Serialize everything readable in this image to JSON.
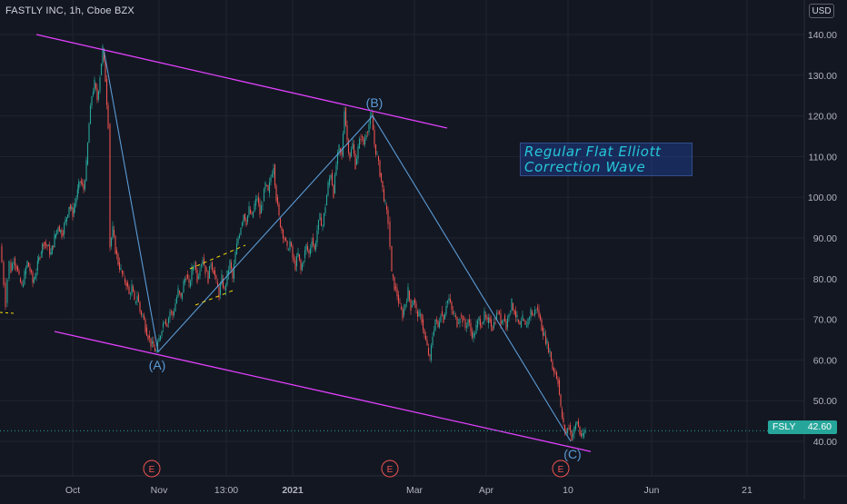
{
  "header": {
    "symbol_title": "FASTLY INC, 1h, Cboe BZX",
    "currency": "USD"
  },
  "colors": {
    "background": "#131722",
    "candle_up": "#26a69a",
    "candle_down": "#ef5350",
    "wave_line": "#5b9bd5",
    "channel_line": "#e040fb",
    "helper_dash": "#f5d90a",
    "annotation_text": "#26c6da",
    "grid": "#1f2430"
  },
  "annotation": {
    "line1": "Regular Flat Elliott",
    "line2": "Correction Wave"
  },
  "price_badge": {
    "symbol": "FSLY",
    "price": "42.60"
  },
  "chart_data": {
    "type": "candlestick",
    "title": "FASTLY INC, 1h, Cboe BZX",
    "y_unit": "USD",
    "ylim": [
      33,
      147
    ],
    "y_ticks": [
      40,
      50,
      60,
      70,
      80,
      90,
      100,
      110,
      120,
      130,
      140
    ],
    "y_tick_labels": [
      "40.00",
      "50.00",
      "60.00",
      "70.00",
      "80.00",
      "90.00",
      "100.00",
      "110.00",
      "120.00",
      "130.00",
      "140.00"
    ],
    "x_ticks": [
      "Oct",
      "Nov",
      "13:00",
      "2021",
      "Mar",
      "Apr",
      "10",
      "Jun",
      "21"
    ],
    "grid": true,
    "earnings_markers": [
      "E",
      "E",
      "E"
    ],
    "last_price": 42.6,
    "elliott_wave": [
      {
        "label": "",
        "price": 136.5
      },
      {
        "label": "(A)",
        "price": 62
      },
      {
        "label": "(B)",
        "price": 120
      },
      {
        "label": "(C)",
        "price": 40
      }
    ],
    "channel": {
      "upper": {
        "from_price": 140,
        "to_price": 117
      },
      "lower": {
        "from_price": 67,
        "to_price": 37.5
      }
    },
    "price_path": [
      [
        0,
        88
      ],
      [
        2,
        84
      ],
      [
        4,
        79
      ],
      [
        6,
        74
      ],
      [
        8,
        80
      ],
      [
        10,
        84
      ],
      [
        12,
        82
      ],
      [
        15,
        85
      ],
      [
        18,
        83
      ],
      [
        21,
        80
      ],
      [
        24,
        78
      ],
      [
        27,
        81
      ],
      [
        30,
        84
      ],
      [
        33,
        82
      ],
      [
        36,
        79
      ],
      [
        40,
        82
      ],
      [
        44,
        86
      ],
      [
        48,
        89
      ],
      [
        52,
        88
      ],
      [
        56,
        86
      ],
      [
        60,
        90
      ],
      [
        64,
        93
      ],
      [
        68,
        91
      ],
      [
        72,
        94
      ],
      [
        76,
        98
      ],
      [
        80,
        96
      ],
      [
        84,
        100
      ],
      [
        88,
        104
      ],
      [
        92,
        102
      ],
      [
        95,
        108
      ],
      [
        98,
        118
      ],
      [
        101,
        125
      ],
      [
        104,
        128
      ],
      [
        107,
        124
      ],
      [
        110,
        130
      ],
      [
        113,
        136.5
      ],
      [
        116,
        129
      ],
      [
        119,
        118
      ],
      [
        121,
        88
      ],
      [
        124,
        92
      ],
      [
        127,
        87
      ],
      [
        130,
        84
      ],
      [
        133,
        82
      ],
      [
        136,
        80
      ],
      [
        139,
        79
      ],
      [
        142,
        76
      ],
      [
        145,
        78
      ],
      [
        148,
        74
      ],
      [
        151,
        76
      ],
      [
        154,
        72
      ],
      [
        157,
        71
      ],
      [
        160,
        68
      ],
      [
        163,
        66
      ],
      [
        166,
        64
      ],
      [
        169,
        63
      ],
      [
        172,
        62
      ],
      [
        175,
        65
      ],
      [
        178,
        68
      ],
      [
        181,
        70
      ],
      [
        184,
        69
      ],
      [
        187,
        72
      ],
      [
        190,
        71
      ],
      [
        193,
        74
      ],
      [
        196,
        77
      ],
      [
        199,
        75
      ],
      [
        202,
        79
      ],
      [
        205,
        81
      ],
      [
        208,
        78
      ],
      [
        211,
        82
      ],
      [
        214,
        84
      ],
      [
        217,
        80
      ],
      [
        220,
        83
      ],
      [
        223,
        85
      ],
      [
        226,
        82
      ],
      [
        229,
        80
      ],
      [
        232,
        84
      ],
      [
        235,
        82
      ],
      [
        238,
        79
      ],
      [
        241,
        76
      ],
      [
        244,
        80
      ],
      [
        247,
        77
      ],
      [
        250,
        81
      ],
      [
        253,
        84
      ],
      [
        256,
        80
      ],
      [
        259,
        86
      ],
      [
        262,
        90
      ],
      [
        265,
        93
      ],
      [
        268,
        96
      ],
      [
        271,
        94
      ],
      [
        274,
        97
      ],
      [
        277,
        95
      ],
      [
        280,
        98
      ],
      [
        283,
        100
      ],
      [
        286,
        96
      ],
      [
        289,
        99
      ],
      [
        292,
        103
      ],
      [
        295,
        101
      ],
      [
        298,
        105
      ],
      [
        301,
        108
      ],
      [
        304,
        100
      ],
      [
        307,
        95
      ],
      [
        310,
        92
      ],
      [
        313,
        90
      ],
      [
        316,
        87
      ],
      [
        319,
        89
      ],
      [
        322,
        85
      ],
      [
        325,
        83
      ],
      [
        328,
        86
      ],
      [
        331,
        82
      ],
      [
        334,
        85
      ],
      [
        337,
        88
      ],
      [
        340,
        86
      ],
      [
        343,
        90
      ],
      [
        346,
        87
      ],
      [
        349,
        92
      ],
      [
        352,
        95
      ],
      [
        355,
        93
      ],
      [
        358,
        98
      ],
      [
        361,
        103
      ],
      [
        364,
        106
      ],
      [
        367,
        101
      ],
      [
        370,
        108
      ],
      [
        373,
        112
      ],
      [
        376,
        110
      ],
      [
        379,
        122
      ],
      [
        382,
        114
      ],
      [
        385,
        110
      ],
      [
        388,
        113
      ],
      [
        391,
        108
      ],
      [
        394,
        112
      ],
      [
        397,
        115
      ],
      [
        400,
        113
      ],
      [
        403,
        116
      ],
      [
        406,
        118
      ],
      [
        409,
        120
      ],
      [
        412,
        113
      ],
      [
        415,
        110
      ],
      [
        418,
        106
      ],
      [
        421,
        102
      ],
      [
        424,
        98
      ],
      [
        427,
        94
      ],
      [
        429,
        88
      ],
      [
        431,
        81
      ],
      [
        434,
        78
      ],
      [
        437,
        76
      ],
      [
        440,
        73
      ],
      [
        443,
        71
      ],
      [
        446,
        74
      ],
      [
        449,
        77
      ],
      [
        452,
        73
      ],
      [
        455,
        75
      ],
      [
        458,
        72
      ],
      [
        461,
        71
      ],
      [
        464,
        70
      ],
      [
        467,
        66
      ],
      [
        470,
        63
      ],
      [
        473,
        60
      ],
      [
        476,
        66
      ],
      [
        479,
        70
      ],
      [
        482,
        68
      ],
      [
        485,
        72
      ],
      [
        488,
        70
      ],
      [
        491,
        74
      ],
      [
        494,
        75
      ],
      [
        497,
        72
      ],
      [
        500,
        71
      ],
      [
        503,
        69
      ],
      [
        506,
        71
      ],
      [
        509,
        70
      ],
      [
        512,
        68
      ],
      [
        515,
        70
      ],
      [
        518,
        67
      ],
      [
        521,
        66
      ],
      [
        524,
        68
      ],
      [
        527,
        70
      ],
      [
        530,
        69
      ],
      [
        533,
        71
      ],
      [
        536,
        69
      ],
      [
        539,
        70
      ],
      [
        542,
        68
      ],
      [
        545,
        70
      ],
      [
        548,
        72
      ],
      [
        551,
        69
      ],
      [
        554,
        71
      ],
      [
        557,
        68
      ],
      [
        560,
        72
      ],
      [
        563,
        74
      ],
      [
        566,
        72
      ],
      [
        569,
        70
      ],
      [
        572,
        68
      ],
      [
        575,
        70
      ],
      [
        578,
        68
      ],
      [
        581,
        70
      ],
      [
        584,
        72
      ],
      [
        587,
        71
      ],
      [
        590,
        73
      ],
      [
        593,
        71
      ],
      [
        596,
        68
      ],
      [
        599,
        66
      ],
      [
        602,
        64
      ],
      [
        605,
        62
      ],
      [
        608,
        58
      ],
      [
        611,
        57
      ],
      [
        614,
        55
      ],
      [
        617,
        48
      ],
      [
        620,
        44
      ],
      [
        623,
        42
      ],
      [
        626,
        44
      ],
      [
        629,
        41
      ],
      [
        632,
        43
      ],
      [
        635,
        45
      ],
      [
        638,
        42
      ],
      [
        641,
        41
      ],
      [
        644,
        42.6
      ]
    ]
  }
}
